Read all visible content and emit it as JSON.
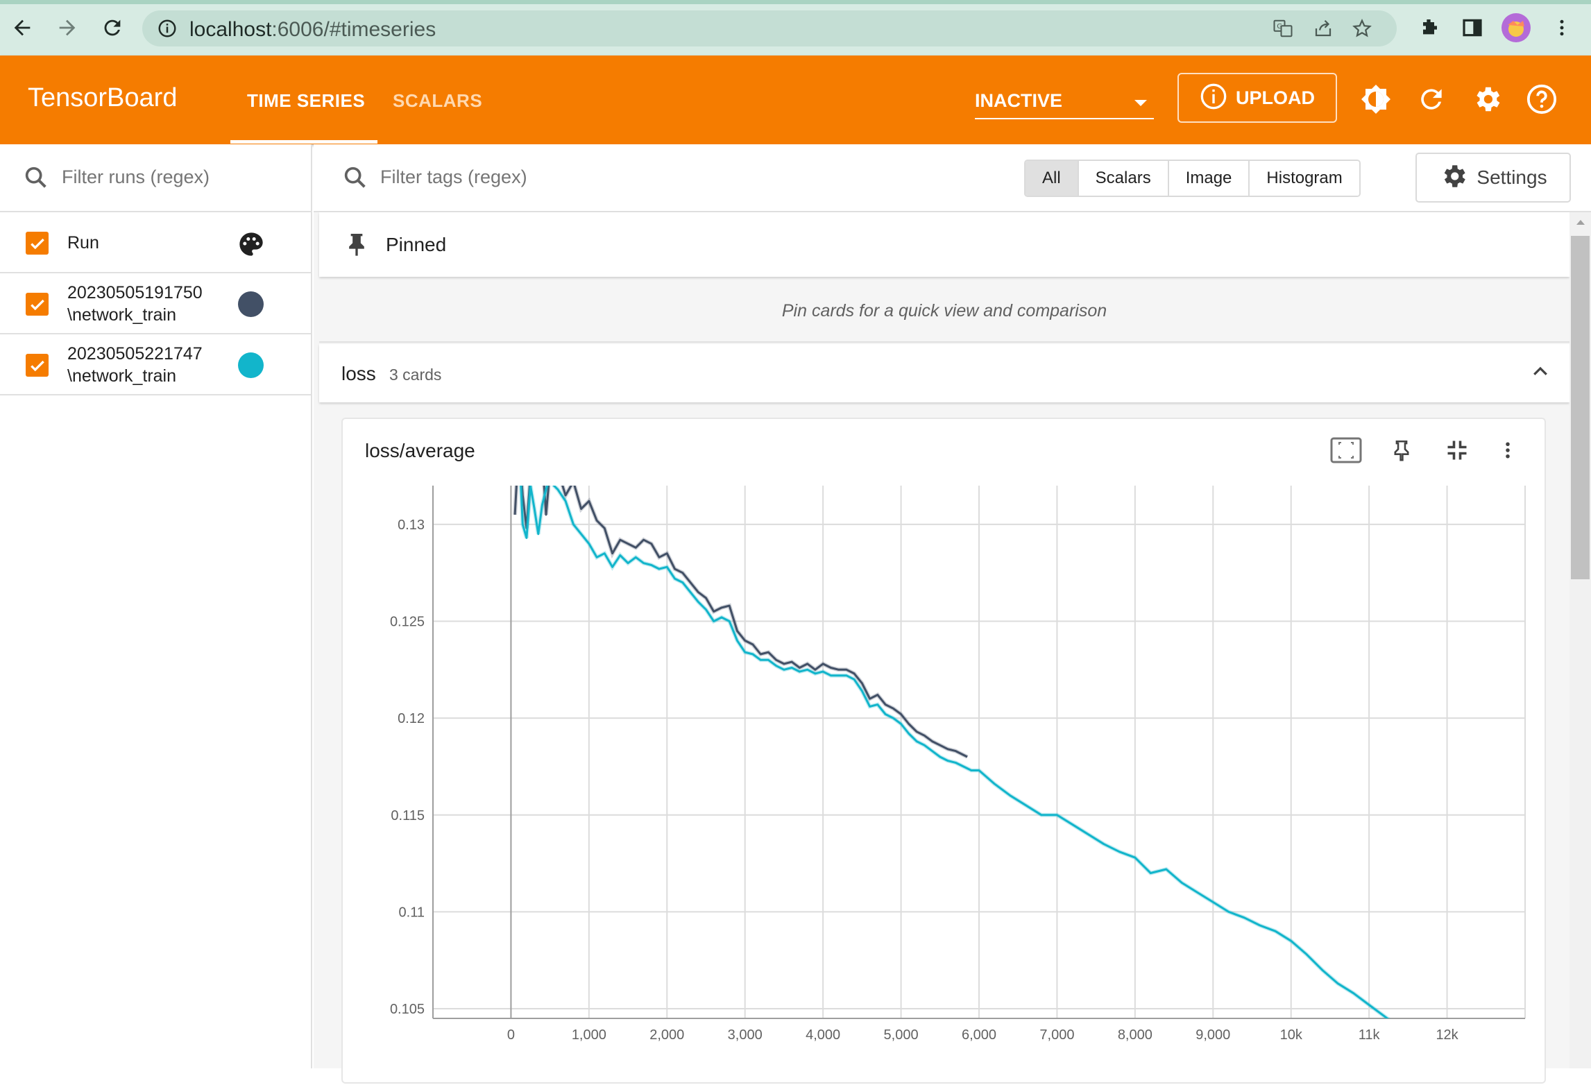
{
  "browser": {
    "url_host": "localhost",
    "url_rest": ":6006/#timeseries"
  },
  "header": {
    "brand": "TensorBoard",
    "tabs": [
      {
        "label": "TIME SERIES",
        "active": true
      },
      {
        "label": "SCALARS",
        "active": false
      }
    ],
    "reload_select": "INACTIVE",
    "upload_label": "UPLOAD",
    "accent_color": "#f57c00"
  },
  "sidebar": {
    "filter_placeholder": "Filter runs (regex)",
    "header_label": "Run",
    "runs": [
      {
        "line1": "20230505191750",
        "line2": "\\network_train",
        "color": "#425066",
        "checked": true
      },
      {
        "line1": "20230505221747",
        "line2": "\\network_train",
        "color": "#12b5cb",
        "checked": true
      }
    ]
  },
  "main": {
    "tag_filter_placeholder": "Filter tags (regex)",
    "type_filters": [
      "All",
      "Scalars",
      "Image",
      "Histogram"
    ],
    "active_type_filter": "All",
    "settings_label": "Settings",
    "pinned_label": "Pinned",
    "pinned_hint": "Pin cards for a quick view and comparison",
    "group_name": "loss",
    "group_count": "3 cards"
  },
  "card": {
    "title": "loss/average"
  },
  "chart_data": {
    "type": "line",
    "title": "loss/average",
    "xlabel": "",
    "ylabel": "",
    "xlim": [
      -1000,
      13000
    ],
    "ylim": [
      0.1045,
      0.132
    ],
    "x_ticks": [
      "0",
      "1,000",
      "2,000",
      "3,000",
      "4,000",
      "5,000",
      "6,000",
      "7,000",
      "8,000",
      "9,000",
      "10k",
      "11k",
      "12k"
    ],
    "x_tick_values": [
      0,
      1000,
      2000,
      3000,
      4000,
      5000,
      6000,
      7000,
      8000,
      9000,
      10000,
      11000,
      12000
    ],
    "y_ticks": [
      "0.105",
      "0.11",
      "0.115",
      "0.12",
      "0.125",
      "0.13"
    ],
    "y_tick_values": [
      0.105,
      0.11,
      0.115,
      0.12,
      0.125,
      0.13
    ],
    "grid": true,
    "series": [
      {
        "color": "#425066",
        "x": [
          50,
          100,
          150,
          200,
          250,
          300,
          350,
          400,
          450,
          500,
          550,
          600,
          700,
          800,
          900,
          1000,
          1100,
          1200,
          1300,
          1400,
          1500,
          1600,
          1700,
          1800,
          1900,
          2000,
          2100,
          2200,
          2300,
          2400,
          2500,
          2600,
          2700,
          2800,
          2900,
          3000,
          3100,
          3200,
          3300,
          3400,
          3500,
          3600,
          3700,
          3800,
          3900,
          4000,
          4100,
          4200,
          4300,
          4400,
          4500,
          4600,
          4700,
          4800,
          4900,
          5000,
          5100,
          5200,
          5300,
          5400,
          5500,
          5600,
          5700,
          5850
        ],
        "y": [
          0.1305,
          0.1342,
          0.1315,
          0.1298,
          0.1325,
          0.1335,
          0.1322,
          0.1335,
          0.1305,
          0.1328,
          0.1338,
          0.1328,
          0.1315,
          0.1322,
          0.1308,
          0.1312,
          0.1302,
          0.1298,
          0.1285,
          0.1292,
          0.129,
          0.1288,
          0.1292,
          0.129,
          0.1283,
          0.1285,
          0.1277,
          0.1275,
          0.127,
          0.1265,
          0.1262,
          0.1255,
          0.1257,
          0.1258,
          0.1245,
          0.124,
          0.1238,
          0.1233,
          0.1234,
          0.123,
          0.1228,
          0.1229,
          0.1226,
          0.1228,
          0.1225,
          0.1228,
          0.1226,
          0.1225,
          0.1225,
          0.1223,
          0.1218,
          0.121,
          0.1212,
          0.1207,
          0.1205,
          0.1202,
          0.1197,
          0.1193,
          0.1191,
          0.1188,
          0.1186,
          0.1184,
          0.1183,
          0.118
        ]
      },
      {
        "color": "#12b5cb",
        "x": [
          50,
          100,
          150,
          200,
          250,
          300,
          350,
          400,
          450,
          500,
          550,
          600,
          700,
          800,
          900,
          1000,
          1100,
          1200,
          1300,
          1400,
          1500,
          1600,
          1700,
          1800,
          1900,
          2000,
          2100,
          2200,
          2300,
          2400,
          2500,
          2600,
          2700,
          2800,
          2900,
          3000,
          3100,
          3200,
          3300,
          3400,
          3500,
          3600,
          3700,
          3800,
          3900,
          4000,
          4100,
          4200,
          4300,
          4400,
          4500,
          4600,
          4700,
          4800,
          4900,
          5000,
          5100,
          5200,
          5300,
          5400,
          5500,
          5600,
          5700,
          5800,
          5900,
          6000,
          6200,
          6400,
          6600,
          6800,
          7000,
          7200,
          7400,
          7600,
          7800,
          8000,
          8200,
          8400,
          8600,
          8800,
          9000,
          9200,
          9400,
          9600,
          9800,
          10000,
          10200,
          10400,
          10600,
          10800,
          11000,
          11200,
          11400,
          11600,
          11700
        ],
        "y": [
          0.1325,
          0.1345,
          0.13,
          0.1293,
          0.132,
          0.1308,
          0.1295,
          0.131,
          0.1318,
          0.1325,
          0.132,
          0.1318,
          0.1312,
          0.13,
          0.1295,
          0.129,
          0.1283,
          0.1285,
          0.1278,
          0.1284,
          0.128,
          0.1283,
          0.128,
          0.1279,
          0.1277,
          0.1278,
          0.1272,
          0.127,
          0.1265,
          0.126,
          0.1256,
          0.125,
          0.1252,
          0.125,
          0.124,
          0.1234,
          0.1233,
          0.123,
          0.123,
          0.1227,
          0.1225,
          0.1226,
          0.1224,
          0.1225,
          0.1223,
          0.1224,
          0.1222,
          0.1222,
          0.1222,
          0.122,
          0.1214,
          0.1206,
          0.1207,
          0.1202,
          0.12,
          0.1197,
          0.1192,
          0.1188,
          0.1186,
          0.1183,
          0.118,
          0.1178,
          0.1177,
          0.1175,
          0.1173,
          0.1173,
          0.1166,
          0.116,
          0.1155,
          0.115,
          0.115,
          0.1145,
          0.114,
          0.1135,
          0.1131,
          0.1128,
          0.112,
          0.1122,
          0.1115,
          0.111,
          0.1105,
          0.11,
          0.1097,
          0.1093,
          0.109,
          0.1085,
          0.1078,
          0.107,
          0.1063,
          0.1058,
          0.1052,
          0.1046,
          0.104,
          0.1035,
          0.103
        ]
      }
    ]
  }
}
